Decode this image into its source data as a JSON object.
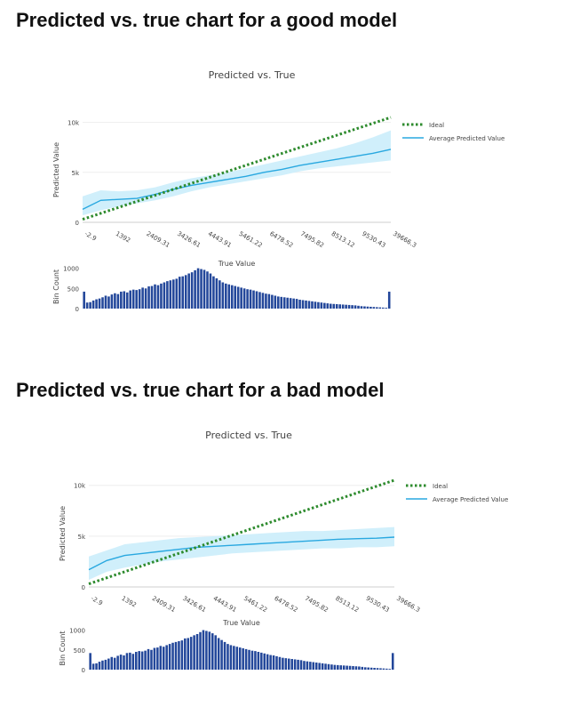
{
  "sections": [
    {
      "heading": "Predicted vs. true chart for a good model"
    },
    {
      "heading": "Predicted vs. true chart for a bad model"
    }
  ],
  "colors": {
    "ideal": "#2e8b2e",
    "average": "#29a8e0",
    "band": "#cdeefb",
    "bins": "#23479a",
    "grid": "#eeeeee",
    "text": "#444444"
  },
  "chart_data": [
    {
      "type": "line",
      "title": "Predicted vs. True",
      "xlabel": "True Value",
      "ylabel": "Predicted Value",
      "bin_ylabel": "Bin Count",
      "x_ticks": [
        "-2.9",
        "1392",
        "2409.31",
        "3426.61",
        "4443.91",
        "5461.22",
        "6478.52",
        "7495.82",
        "8513.12",
        "9530.43",
        "39666.3"
      ],
      "y_ticks": [
        {
          "value": 0,
          "label": "0"
        },
        {
          "value": 5000,
          "label": "5k"
        },
        {
          "value": 10000,
          "label": "10k"
        }
      ],
      "ylim": [
        0,
        10500
      ],
      "bin_ticks": [
        {
          "value": 0,
          "label": "0"
        },
        {
          "value": 500,
          "label": "500"
        },
        {
          "value": 1000,
          "label": "1000"
        }
      ],
      "bin_ylim": [
        0,
        1080
      ],
      "legend": {
        "position": "top-right",
        "entries": [
          "Ideal",
          "Average Predicted Value"
        ]
      },
      "series": [
        {
          "name": "Ideal",
          "style": "dotted",
          "values": [
            300,
            10500
          ]
        },
        {
          "name": "Average Predicted Value",
          "values": [
            1300,
            2200,
            2300,
            2400,
            2800,
            3300,
            3700,
            4000,
            4300,
            4600,
            5000,
            5300,
            5700,
            6000,
            6300,
            6600,
            6900,
            7300
          ]
        }
      ],
      "band": {
        "lower": [
          700,
          1200,
          1600,
          1900,
          2200,
          2600,
          3100,
          3500,
          3800,
          4100,
          4400,
          4700,
          5100,
          5400,
          5600,
          5800,
          6000,
          6200
        ],
        "upper": [
          2600,
          3200,
          3100,
          3200,
          3500,
          4000,
          4400,
          4700,
          5000,
          5400,
          5800,
          6200,
          6600,
          7000,
          7400,
          7900,
          8500,
          9200
        ]
      },
      "bin_counts": [
        420,
        150,
        160,
        200,
        230,
        250,
        280,
        320,
        300,
        350,
        380,
        360,
        420,
        430,
        400,
        450,
        470,
        460,
        480,
        520,
        500,
        550,
        560,
        600,
        580,
        620,
        650,
        680,
        700,
        720,
        740,
        790,
        800,
        830,
        870,
        900,
        950,
        1000,
        980,
        960,
        920,
        870,
        800,
        750,
        700,
        650,
        620,
        600,
        580,
        560,
        540,
        520,
        500,
        480,
        470,
        450,
        430,
        410,
        390,
        370,
        360,
        340,
        320,
        300,
        290,
        280,
        270,
        260,
        250,
        240,
        220,
        210,
        200,
        190,
        180,
        170,
        160,
        150,
        140,
        130,
        120,
        115,
        110,
        105,
        100,
        95,
        90,
        85,
        80,
        70,
        60,
        55,
        50,
        45,
        40,
        35,
        30,
        25,
        20,
        420
      ]
    },
    {
      "type": "line",
      "title": "Predicted vs. True",
      "xlabel": "True Value",
      "ylabel": "Predicted Value",
      "bin_ylabel": "Bin Count",
      "x_ticks": [
        "-2.9",
        "1392",
        "2409.31",
        "3426.61",
        "4443.91",
        "5461.22",
        "6478.52",
        "7495.82",
        "8513.12",
        "9530.43",
        "39666.3"
      ],
      "y_ticks": [
        {
          "value": 0,
          "label": "0"
        },
        {
          "value": 5000,
          "label": "5k"
        },
        {
          "value": 10000,
          "label": "10k"
        }
      ],
      "ylim": [
        0,
        10500
      ],
      "bin_ticks": [
        {
          "value": 0,
          "label": "0"
        },
        {
          "value": 500,
          "label": "500"
        },
        {
          "value": 1000,
          "label": "1000"
        }
      ],
      "bin_ylim": [
        0,
        1080
      ],
      "legend": {
        "position": "top-right",
        "entries": [
          "Ideal",
          "Average Predicted Value"
        ]
      },
      "series": [
        {
          "name": "Ideal",
          "style": "dotted",
          "values": [
            300,
            10500
          ]
        },
        {
          "name": "Average Predicted Value",
          "values": [
            1700,
            2600,
            3100,
            3300,
            3500,
            3700,
            3900,
            4000,
            4100,
            4200,
            4300,
            4400,
            4500,
            4600,
            4700,
            4750,
            4800,
            4900
          ]
        }
      ],
      "band": {
        "lower": [
          700,
          1500,
          1900,
          2200,
          2500,
          2700,
          2900,
          3100,
          3300,
          3400,
          3500,
          3600,
          3700,
          3800,
          3800,
          3900,
          3900,
          4000
        ],
        "upper": [
          3000,
          3600,
          4200,
          4400,
          4600,
          4800,
          4900,
          5000,
          5100,
          5200,
          5300,
          5400,
          5500,
          5500,
          5600,
          5700,
          5800,
          5900
        ]
      },
      "bin_counts": [
        420,
        150,
        160,
        200,
        230,
        250,
        280,
        320,
        300,
        350,
        380,
        360,
        420,
        430,
        400,
        450,
        470,
        460,
        480,
        520,
        500,
        550,
        560,
        600,
        580,
        620,
        650,
        680,
        700,
        720,
        740,
        790,
        800,
        830,
        870,
        900,
        950,
        1000,
        980,
        960,
        920,
        870,
        800,
        750,
        700,
        650,
        620,
        600,
        580,
        560,
        540,
        520,
        500,
        480,
        470,
        450,
        430,
        410,
        390,
        370,
        360,
        340,
        320,
        300,
        290,
        280,
        270,
        260,
        250,
        240,
        220,
        210,
        200,
        190,
        180,
        170,
        160,
        150,
        140,
        130,
        120,
        115,
        110,
        105,
        100,
        95,
        90,
        85,
        80,
        70,
        60,
        55,
        50,
        45,
        40,
        35,
        30,
        25,
        20,
        420
      ]
    }
  ]
}
